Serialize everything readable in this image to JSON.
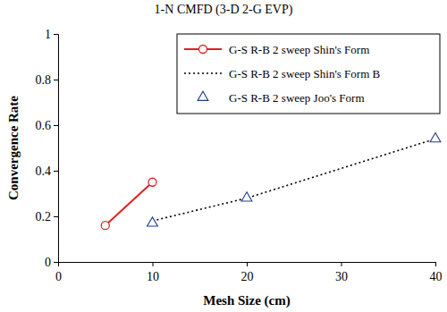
{
  "chart_data": {
    "type": "line",
    "title": "1-N CMFD (3-D 2-G EVP)",
    "x_label": "Mesh Size (cm)",
    "y_label": "Convergence Rate",
    "xlim": [
      0,
      40
    ],
    "xticks": [
      0,
      10,
      20,
      30,
      40
    ],
    "ylim": [
      0,
      1
    ],
    "yticks": [
      0,
      0.2,
      0.4,
      0.6,
      0.8,
      1
    ],
    "grid": false,
    "legend": "upper right",
    "series": [
      {
        "name": "G-S R-B 2 sweep Shin's Form",
        "type": "line",
        "color": "#e02020",
        "marker": "circle",
        "line_style": "solid",
        "x": [
          5,
          10
        ],
        "values": [
          0.16,
          0.35
        ]
      },
      {
        "name": "G-S R-B 2 sweep Shin's Form B",
        "type": "line",
        "color": "#000000",
        "marker": "none",
        "line_style": "dotted",
        "x": [
          10,
          20,
          40
        ],
        "values": [
          0.18,
          0.28,
          0.54
        ]
      },
      {
        "name": "G-S R-B 2 sweep Joo's Form",
        "type": "scatter",
        "color": "#1f3c88",
        "marker": "triangle",
        "line_style": "none",
        "x": [
          10,
          20,
          40
        ],
        "values": [
          0.17,
          0.28,
          0.54
        ]
      }
    ]
  }
}
